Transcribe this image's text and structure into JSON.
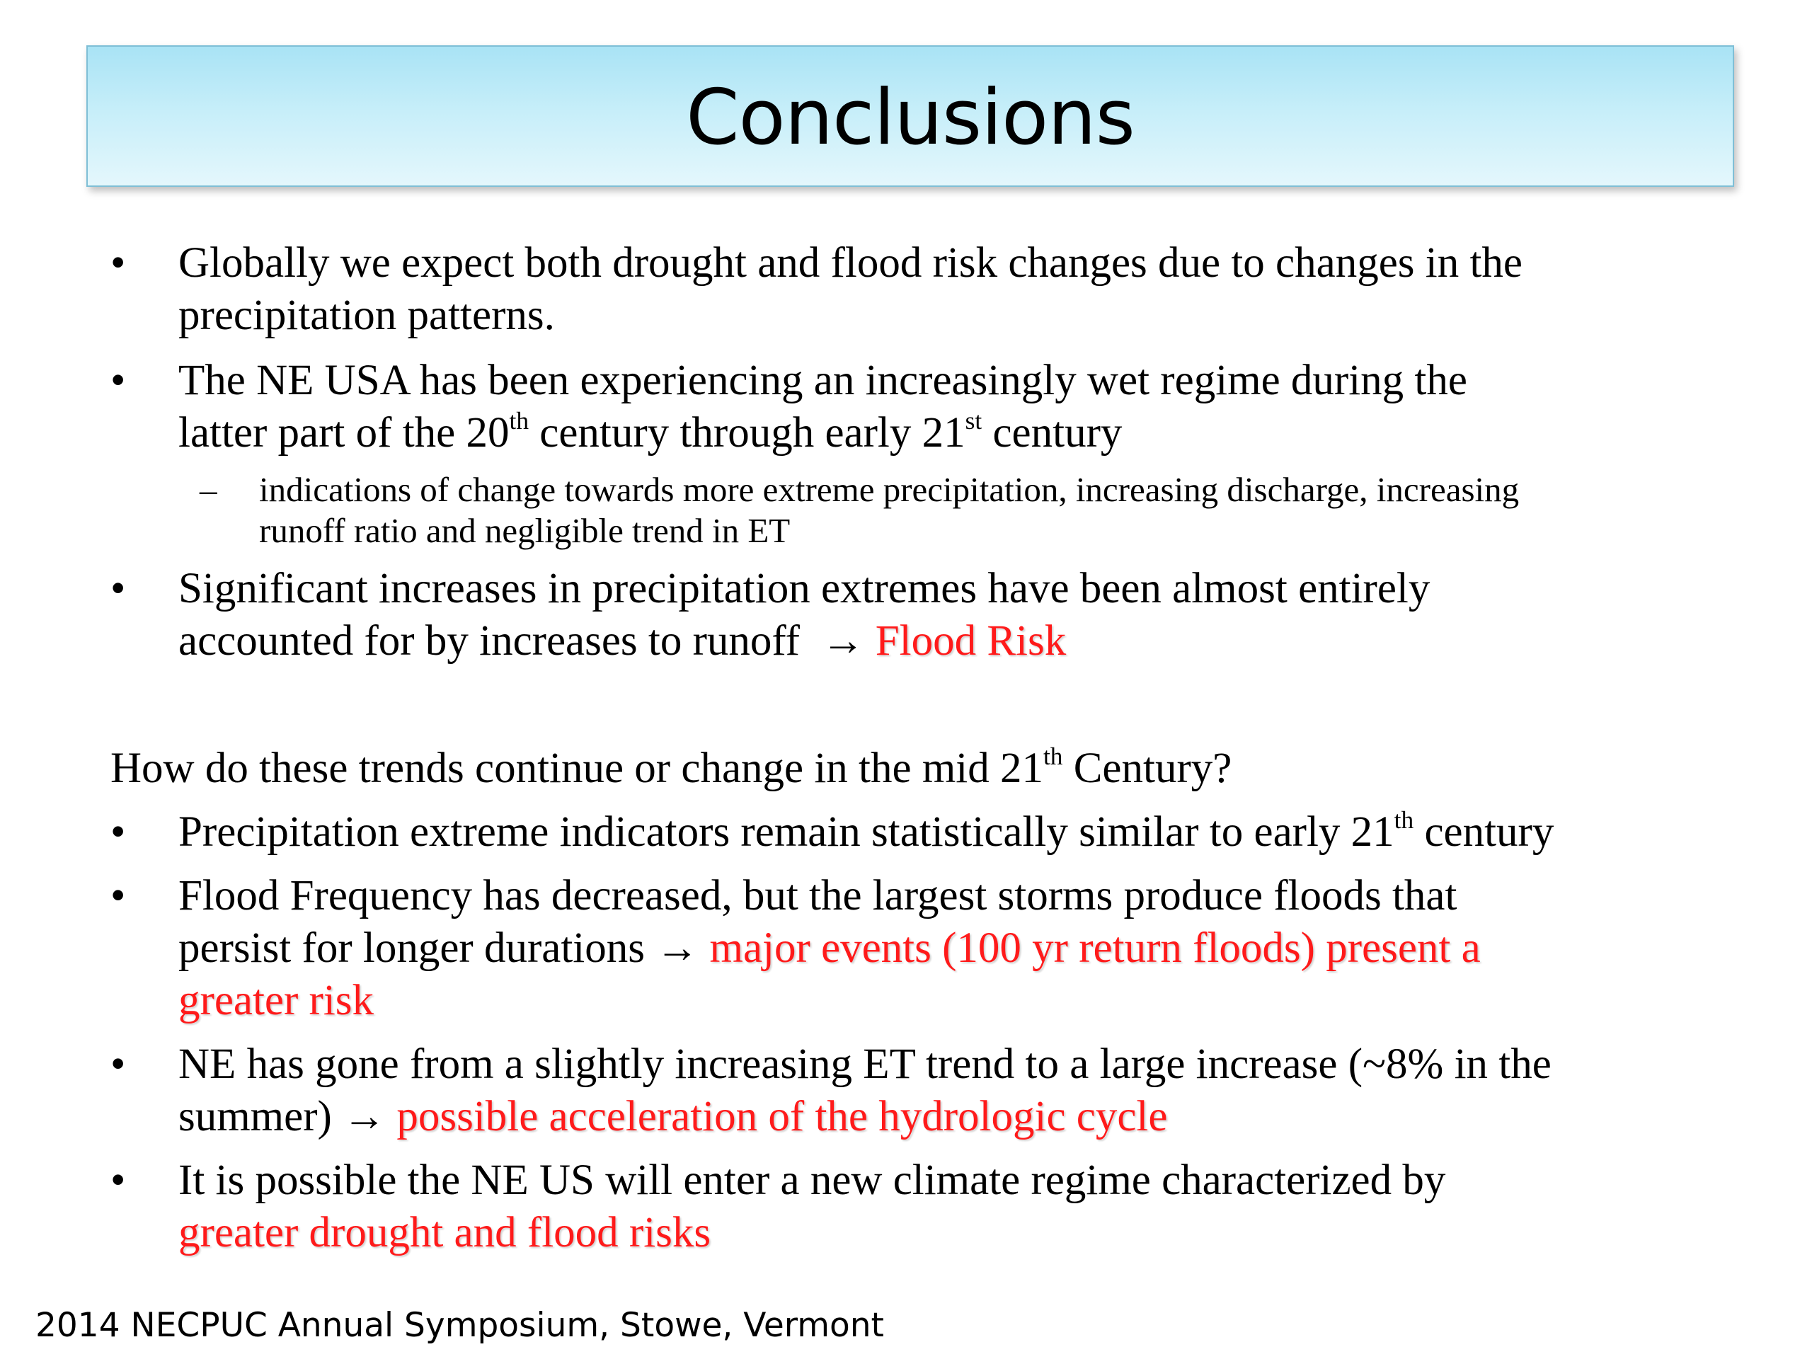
{
  "slide": {
    "title": "Conclusions",
    "footer": "2014 NECPUC Annual Symposium, Stowe, Vermont"
  },
  "bullets": {
    "b1": {
      "line1": "Globally we expect both drought and flood risk changes due to changes in the",
      "line2": "precipitation patterns."
    },
    "b2": {
      "line1": "The NE USA has been experiencing an increasingly wet regime during the",
      "line2_a": "latter part of the 20",
      "line2_sup1": "th",
      "line2_b": " century through early 21",
      "line2_sup2": "st",
      "line2_c": " century"
    },
    "sub1": {
      "dash": "–",
      "line1": "indications of change towards more extreme precipitation, increasing discharge, increasing",
      "line2": "runoff ratio and negligible trend in ET"
    },
    "b3": {
      "line1": "Significant increases in precipitation extremes have been almost entirely",
      "line2_a": "accounted for by increases to runoff  → ",
      "line2_red": "Flood Risk"
    }
  },
  "question": {
    "text_a": "How do these trends continue or change in the mid 21",
    "text_sup": "th",
    "text_b": " Century?"
  },
  "answers": {
    "a1": {
      "line1_a": "Precipitation extreme indicators remain statistically similar to early 21",
      "line1_sup": "th",
      "line1_b": " century"
    },
    "a2": {
      "line1": "Flood Frequency has decreased, but the largest storms produce floods that",
      "line2_a": "persist for longer durations → ",
      "line2_red": "major events (100 yr return floods) present a",
      "line3_red": "greater risk"
    },
    "a3": {
      "line1": "NE has gone from a slightly increasing ET trend to a large increase (~8% in the",
      "line2_a": "summer) → ",
      "line2_red": "possible acceleration of the hydrologic cycle"
    },
    "a4": {
      "line1": "It is possible the NE US will enter a new climate regime characterized by",
      "line2_red": "greater drought and flood risks"
    }
  },
  "bullet_glyph": "•",
  "colors": {
    "emphasis": "#ff1a1a",
    "title_bar_top": "#a9e3f5",
    "title_bar_bottom": "#e4f7fc"
  }
}
